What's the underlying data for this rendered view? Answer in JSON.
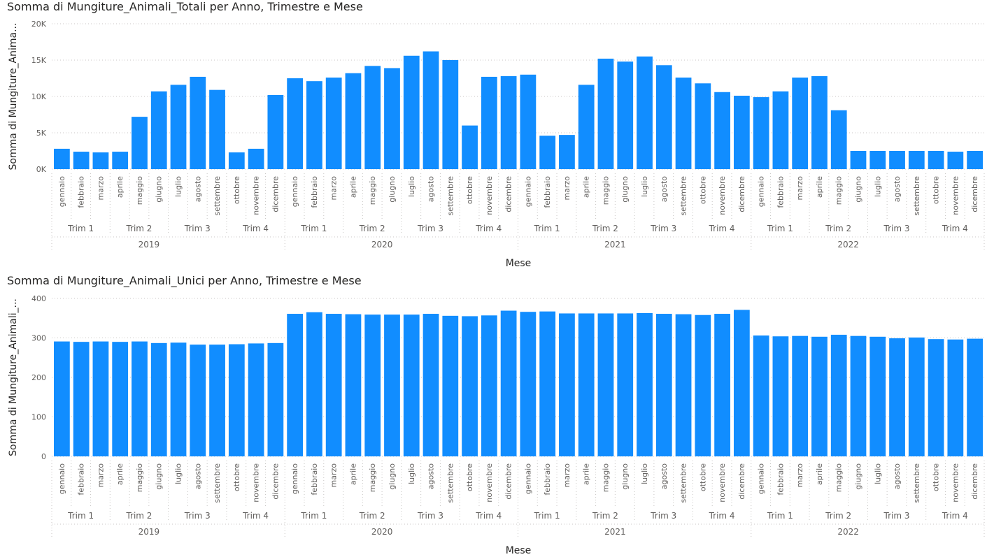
{
  "charts": [
    {
      "title": "Somma di Mungiture_Animali_Totali per Anno, Trimestre e Mese",
      "ylabel": "Somma di Mungiture_Anima...",
      "xlabel": "Mese",
      "ylim": [
        0,
        20000
      ],
      "yticks": [
        0,
        5000,
        10000,
        15000,
        20000
      ],
      "ytick_labels": [
        "0K",
        "5K",
        "10K",
        "15K",
        "20K"
      ],
      "values": [
        2800,
        2400,
        2300,
        2400,
        7200,
        10700,
        11600,
        12700,
        10900,
        2300,
        2800,
        10200,
        12500,
        12100,
        12600,
        13200,
        14200,
        13900,
        15600,
        16200,
        15000,
        6000,
        12700,
        12800,
        13000,
        4600,
        4700,
        11600,
        15200,
        14800,
        15500,
        14300,
        12600,
        11800,
        10600,
        10100,
        9900,
        10700,
        12600,
        12800,
        8100,
        2500,
        2500,
        2500,
        2500,
        2500,
        2400,
        2500
      ]
    },
    {
      "title": "Somma di Mungiture_Animali_Unici per Anno, Trimestre e Mese",
      "ylabel": "Somma di Mungiture_Animali_...",
      "xlabel": "Mese",
      "ylim": [
        0,
        400
      ],
      "yticks": [
        0,
        100,
        200,
        300,
        400
      ],
      "ytick_labels": [
        "0",
        "100",
        "200",
        "300",
        "400"
      ],
      "values": [
        291,
        290,
        291,
        290,
        291,
        287,
        288,
        283,
        283,
        284,
        286,
        287,
        361,
        365,
        361,
        360,
        359,
        359,
        359,
        361,
        356,
        355,
        357,
        369,
        366,
        367,
        362,
        362,
        362,
        362,
        363,
        361,
        360,
        358,
        361,
        371,
        306,
        304,
        305,
        303,
        308,
        305,
        303,
        299,
        301,
        297,
        296,
        298
      ]
    }
  ],
  "months": [
    "gennaio",
    "febbraio",
    "marzo",
    "aprile",
    "maggio",
    "giugno",
    "luglio",
    "agosto",
    "settembre",
    "ottobre",
    "novembre",
    "dicembre"
  ],
  "quarters": [
    "Trim 1",
    "Trim 2",
    "Trim 3",
    "Trim 4"
  ],
  "years": [
    "2019",
    "2020",
    "2021",
    "2022"
  ],
  "colors": {
    "bar": "#118DFF",
    "text": "#605E5C",
    "title": "#252423",
    "grid": "#C8C6C4"
  },
  "chart_data": [
    {
      "type": "bar",
      "title": "Somma di Mungiture_Animali_Totali per Anno, Trimestre e Mese",
      "xlabel": "Mese",
      "ylabel": "Somma di Mungiture_Anima...",
      "ylim": [
        0,
        20000
      ],
      "grid": true,
      "x_hierarchy": [
        "Anno",
        "Trimestre",
        "Mese"
      ],
      "categories": [
        "2019 gennaio",
        "2019 febbraio",
        "2019 marzo",
        "2019 aprile",
        "2019 maggio",
        "2019 giugno",
        "2019 luglio",
        "2019 agosto",
        "2019 settembre",
        "2019 ottobre",
        "2019 novembre",
        "2019 dicembre",
        "2020 gennaio",
        "2020 febbraio",
        "2020 marzo",
        "2020 aprile",
        "2020 maggio",
        "2020 giugno",
        "2020 luglio",
        "2020 agosto",
        "2020 settembre",
        "2020 ottobre",
        "2020 novembre",
        "2020 dicembre",
        "2021 gennaio",
        "2021 febbraio",
        "2021 marzo",
        "2021 aprile",
        "2021 maggio",
        "2021 giugno",
        "2021 luglio",
        "2021 agosto",
        "2021 settembre",
        "2021 ottobre",
        "2021 novembre",
        "2021 dicembre",
        "2022 gennaio",
        "2022 febbraio",
        "2022 marzo",
        "2022 aprile",
        "2022 maggio",
        "2022 giugno",
        "2022 luglio",
        "2022 agosto",
        "2022 settembre",
        "2022 ottobre",
        "2022 novembre",
        "2022 dicembre"
      ],
      "values": [
        2800,
        2400,
        2300,
        2400,
        7200,
        10700,
        11600,
        12700,
        10900,
        2300,
        2800,
        10200,
        12500,
        12100,
        12600,
        13200,
        14200,
        13900,
        15600,
        16200,
        15000,
        6000,
        12700,
        12800,
        13000,
        4600,
        4700,
        11600,
        15200,
        14800,
        15500,
        14300,
        12600,
        11800,
        10600,
        10100,
        9900,
        10700,
        12600,
        12800,
        8100,
        2500,
        2500,
        2500,
        2500,
        2500,
        2400,
        2500
      ]
    },
    {
      "type": "bar",
      "title": "Somma di Mungiture_Animali_Unici per Anno, Trimestre e Mese",
      "xlabel": "Mese",
      "ylabel": "Somma di Mungiture_Animali_...",
      "ylim": [
        0,
        400
      ],
      "grid": true,
      "x_hierarchy": [
        "Anno",
        "Trimestre",
        "Mese"
      ],
      "categories": [
        "2019 gennaio",
        "2019 febbraio",
        "2019 marzo",
        "2019 aprile",
        "2019 maggio",
        "2019 giugno",
        "2019 luglio",
        "2019 agosto",
        "2019 settembre",
        "2019 ottobre",
        "2019 novembre",
        "2019 dicembre",
        "2020 gennaio",
        "2020 febbraio",
        "2020 marzo",
        "2020 aprile",
        "2020 maggio",
        "2020 giugno",
        "2020 luglio",
        "2020 agosto",
        "2020 settembre",
        "2020 ottobre",
        "2020 novembre",
        "2020 dicembre",
        "2021 gennaio",
        "2021 febbraio",
        "2021 marzo",
        "2021 aprile",
        "2021 maggio",
        "2021 giugno",
        "2021 luglio",
        "2021 agosto",
        "2021 settembre",
        "2021 ottobre",
        "2021 novembre",
        "2021 dicembre",
        "2022 gennaio",
        "2022 febbraio",
        "2022 marzo",
        "2022 aprile",
        "2022 maggio",
        "2022 giugno",
        "2022 luglio",
        "2022 agosto",
        "2022 settembre",
        "2022 ottobre",
        "2022 novembre",
        "2022 dicembre"
      ],
      "values": [
        291,
        290,
        291,
        290,
        291,
        287,
        288,
        283,
        283,
        284,
        286,
        287,
        361,
        365,
        361,
        360,
        359,
        359,
        359,
        361,
        356,
        355,
        357,
        369,
        366,
        367,
        362,
        362,
        362,
        362,
        363,
        361,
        360,
        358,
        361,
        371,
        306,
        304,
        305,
        303,
        308,
        305,
        303,
        299,
        301,
        297,
        296,
        298
      ]
    }
  ]
}
